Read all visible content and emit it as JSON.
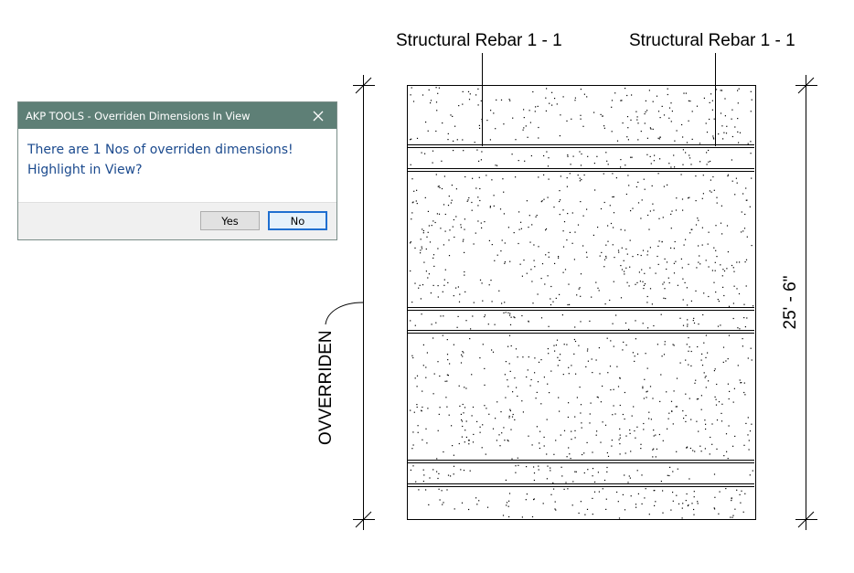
{
  "dialog": {
    "title": "AKP TOOLS - Overriden Dimensions In View",
    "message_line1": "There are 1 Nos of overriden dimensions!",
    "message_line2": "Highlight in View?",
    "yes_label": "Yes",
    "no_label": "No",
    "close_icon": "close-icon"
  },
  "drawing": {
    "rebar_tag_left": "Structural Rebar 1 - 1",
    "rebar_tag_right": "Structural Rebar 1 - 1",
    "left_dimension_text": "OVVERRIDEN",
    "right_dimension_text": "25' - 6\""
  },
  "colors": {
    "titlebar": "#5e7f76",
    "message_text": "#1b4a8e",
    "default_button_border": "#1f6fd0"
  }
}
